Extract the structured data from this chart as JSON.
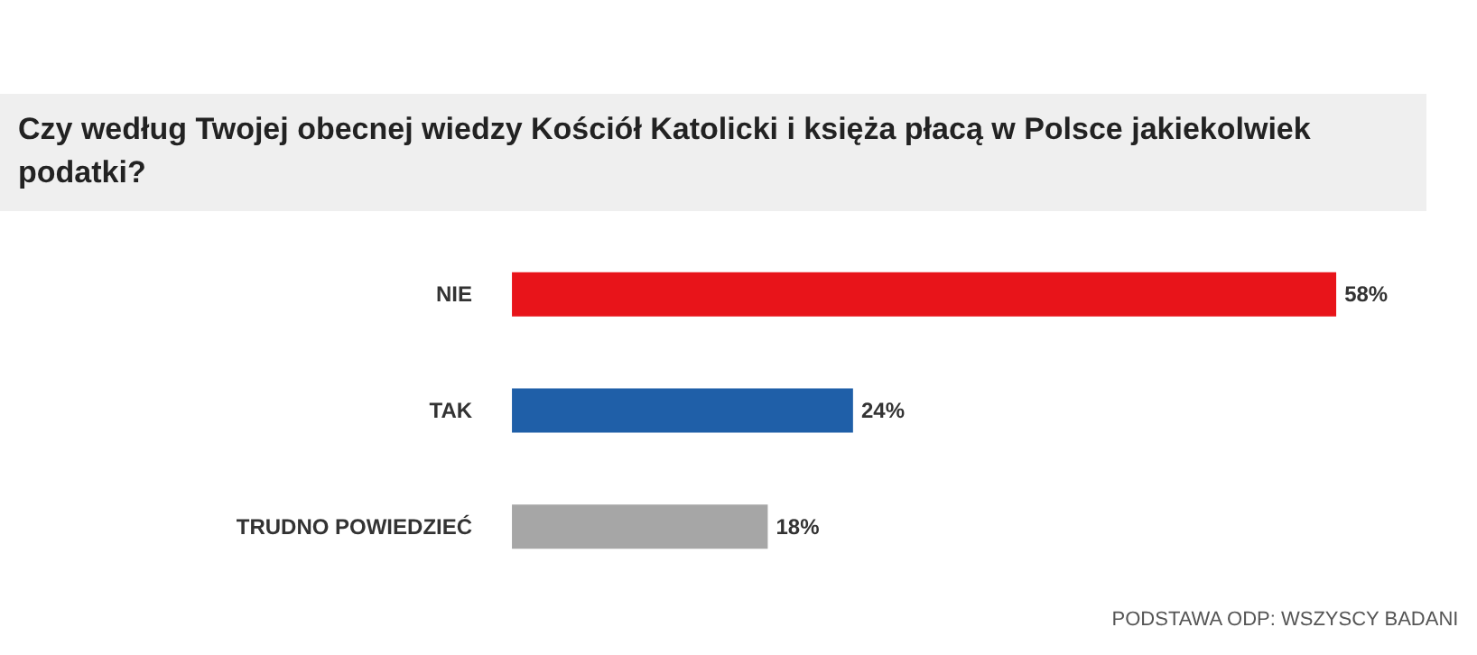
{
  "chart_data": {
    "type": "bar",
    "orientation": "horizontal",
    "title": "Czy według Twojej obecnej wiedzy Kościół Katolicki i księża płacą w Polsce jakiekolwiek podatki?",
    "categories": [
      "NIE",
      "TAK",
      "TRUDNO POWIEDZIEĆ"
    ],
    "values": [
      58,
      24,
      18
    ],
    "colors": [
      "#e8141a",
      "#1f5fa8",
      "#a6a6a6"
    ],
    "value_labels": [
      "58%",
      "24%",
      "18%"
    ],
    "annotations": [
      "PODSTAWA ODP: WSZYSCY BADANI"
    ],
    "grid": false
  }
}
